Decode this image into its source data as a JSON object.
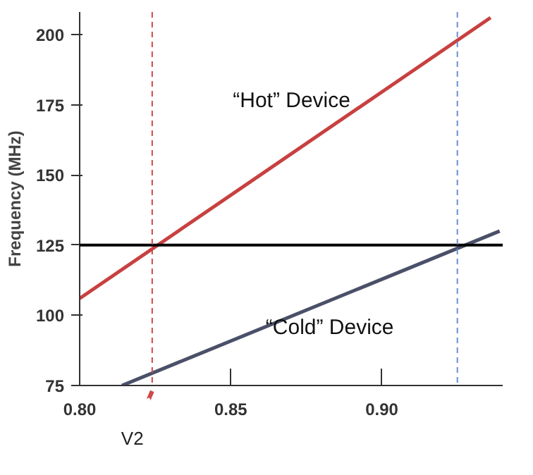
{
  "chart_data": {
    "type": "line",
    "ylabel": "Frequency (MHz)",
    "xlim": [
      0.8,
      0.94
    ],
    "ylim": [
      75,
      208
    ],
    "xticks": [
      {
        "value": 0.8,
        "label": "0.80"
      },
      {
        "value": 0.85,
        "label": "0.85"
      },
      {
        "value": 0.9,
        "label": "0.90"
      }
    ],
    "yticks": [
      75,
      100,
      125,
      150,
      175,
      200
    ],
    "grid": false,
    "series": [
      {
        "name": "“Hot” Device",
        "color": "#c84040",
        "x": [
          0.8,
          0.936
        ],
        "values": [
          106,
          206
        ]
      },
      {
        "name": "“Cold” Device",
        "color": "#4a5068",
        "x": [
          0.814,
          0.939
        ],
        "values": [
          75,
          130
        ]
      }
    ],
    "ref_lines": [
      {
        "axis": "y",
        "value": 125,
        "color": "#000000",
        "line_style": "solid"
      },
      {
        "axis": "x",
        "value": 0.824,
        "color": "#d04848",
        "line_style": "dashed"
      },
      {
        "axis": "x",
        "value": 0.925,
        "color": "#6a8fd0",
        "line_style": "dashed"
      }
    ],
    "annotations": [
      {
        "text": "V2",
        "x": 0.824,
        "y": 75
      }
    ]
  }
}
